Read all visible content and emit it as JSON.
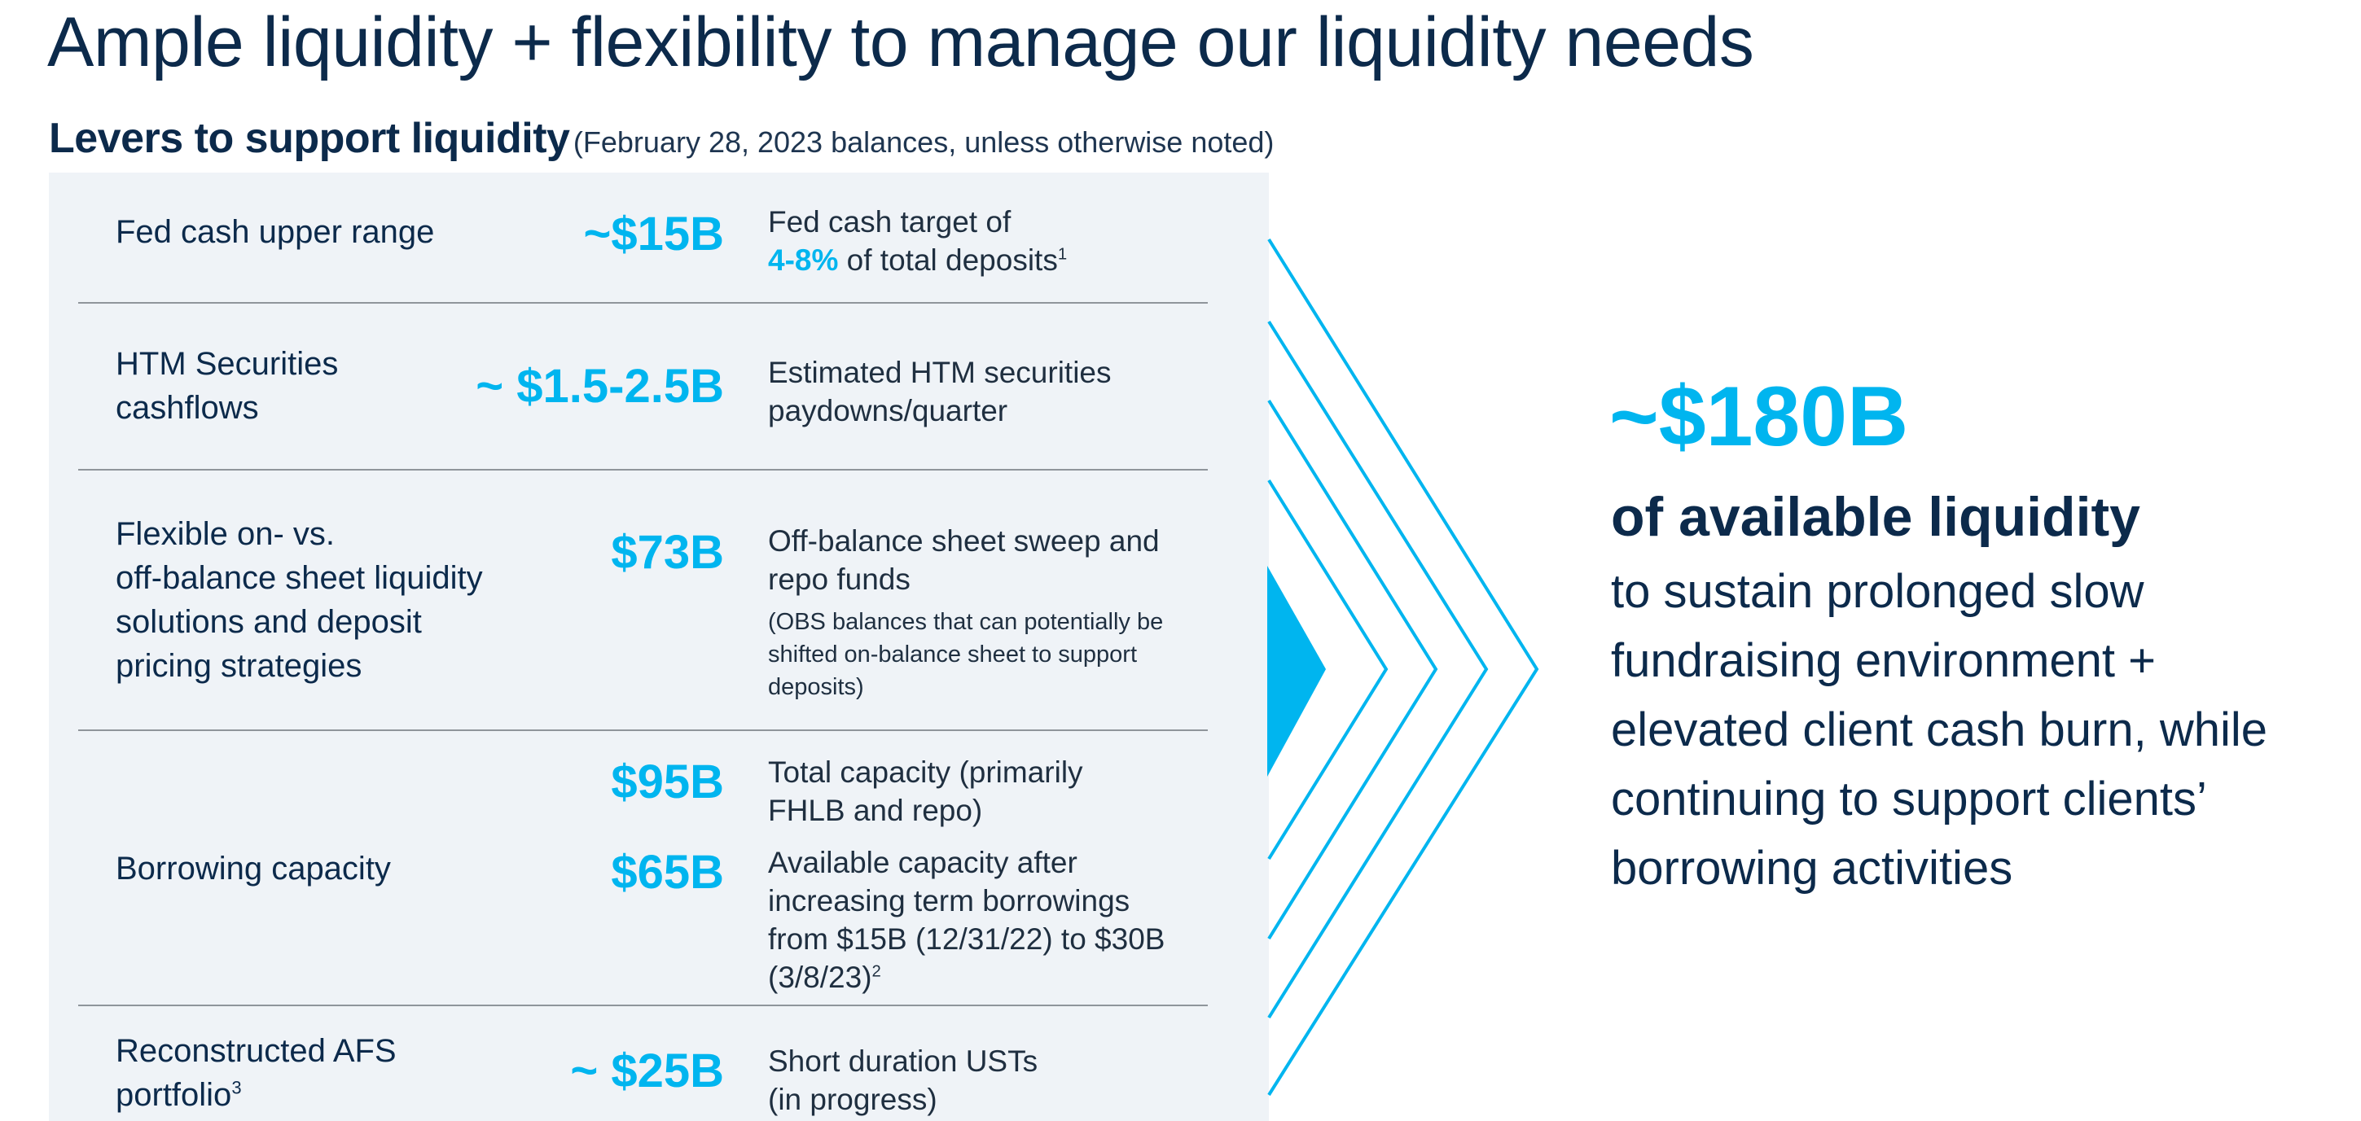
{
  "title": "Ample liquidity + flexibility to manage our liquidity needs",
  "subtitle": {
    "bold": "Levers to support liquidity",
    "note": "(February 28, 2023 balances, unless otherwise noted)"
  },
  "colors": {
    "navy": "#0c2a4b",
    "accent": "#00b5ef",
    "panel": "#eff3f7"
  },
  "levers": [
    {
      "label": [
        "Fed cash upper range"
      ],
      "value": "~$15B",
      "desc": {
        "line1": "Fed cash target of",
        "highlight": "4-8%",
        "line2": " of total deposits",
        "sup": "1"
      }
    },
    {
      "label": [
        "HTM Securities",
        "cashflows"
      ],
      "value": "~ $1.5-2.5B",
      "desc": [
        "Estimated HTM securities",
        "paydowns/quarter"
      ]
    },
    {
      "label": [
        "Flexible on- vs.",
        "off-balance sheet liquidity",
        "solutions and deposit",
        "pricing strategies"
      ],
      "value": "$73B",
      "desc": [
        "Off-balance sheet sweep and",
        "repo funds"
      ],
      "note": [
        "(OBS balances that can potentially be",
        "shifted on-balance sheet to support",
        "deposits)"
      ]
    },
    {
      "label": [
        "Borrowing capacity"
      ],
      "values": [
        "$95B",
        "$65B"
      ],
      "desc_a": [
        "Total capacity (primarily",
        "FHLB and repo)"
      ],
      "desc_b": [
        "Available capacity after",
        "increasing term borrowings",
        "from $15B (12/31/22) to $30B",
        "(3/8/23)"
      ],
      "desc_b_sup": "2"
    },
    {
      "label": [
        "Reconstructed AFS",
        "portfolio"
      ],
      "label_sup": "3",
      "value": "~ $25B",
      "desc": [
        "Short duration USTs",
        "(in progress)"
      ]
    }
  ],
  "summary": {
    "amount": "~$180B",
    "headline": "of available liquidity",
    "body": [
      "to sustain prolonged slow",
      "fundraising environment +",
      "elevated client cash burn, while",
      "continuing to support clients’",
      "borrowing activities"
    ]
  }
}
